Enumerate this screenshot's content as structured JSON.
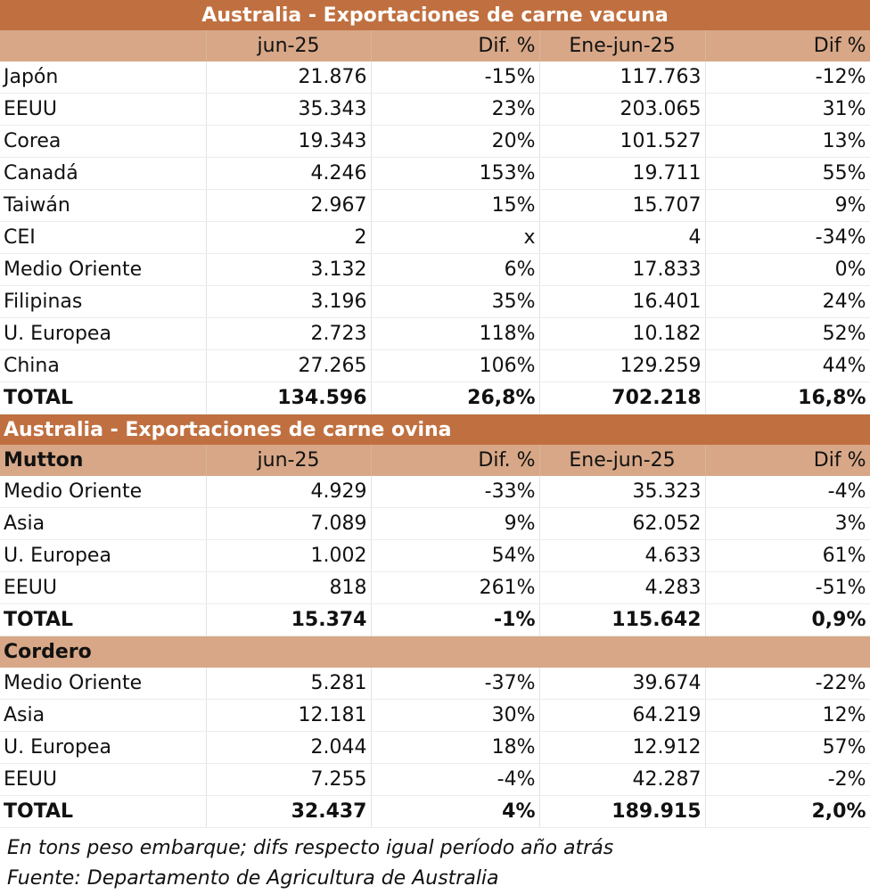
{
  "beef": {
    "title": "Australia - Exportaciones de carne vacuna",
    "headers": [
      "",
      "jun-25",
      "Dif. %",
      "Ene-jun-25",
      "Dif %"
    ],
    "rows": [
      [
        "Japón",
        "21.876",
        "-15%",
        "117.763",
        "-12%"
      ],
      [
        "EEUU",
        "35.343",
        "23%",
        "203.065",
        "31%"
      ],
      [
        "Corea",
        "19.343",
        "20%",
        "101.527",
        "13%"
      ],
      [
        "Canadá",
        "4.246",
        "153%",
        "19.711",
        "55%"
      ],
      [
        "Taiwán",
        "2.967",
        "15%",
        "15.707",
        "9%"
      ],
      [
        "CEI",
        "2",
        "x",
        "4",
        "-34%"
      ],
      [
        "Medio Oriente",
        "3.132",
        "6%",
        "17.833",
        "0%"
      ],
      [
        "Filipinas",
        "3.196",
        "35%",
        "16.401",
        "24%"
      ],
      [
        "U. Europea",
        "2.723",
        "118%",
        "10.182",
        "52%"
      ],
      [
        "China",
        "27.265",
        "106%",
        "129.259",
        "44%"
      ]
    ],
    "total": [
      "TOTAL",
      "134.596",
      "26,8%",
      "702.218",
      "16,8%"
    ]
  },
  "sheep": {
    "title": "Australia - Exportaciones de carne ovina",
    "mutton": {
      "headers": [
        "Mutton",
        "jun-25",
        "Dif. %",
        "Ene-jun-25",
        "Dif %"
      ],
      "rows": [
        [
          "Medio Oriente",
          "4.929",
          "-33%",
          "35.323",
          "-4%"
        ],
        [
          "Asia",
          "7.089",
          "9%",
          "62.052",
          "3%"
        ],
        [
          "U. Europea",
          "1.002",
          "54%",
          "4.633",
          "61%"
        ],
        [
          "EEUU",
          "818",
          "261%",
          "4.283",
          "-51%"
        ]
      ],
      "total": [
        "TOTAL",
        "15.374",
        "-1%",
        "115.642",
        "0,9%"
      ]
    },
    "lamb": {
      "label": "Cordero",
      "rows": [
        [
          "Medio Oriente",
          "5.281",
          "-37%",
          "39.674",
          "-22%"
        ],
        [
          "Asia",
          "12.181",
          "30%",
          "64.219",
          "12%"
        ],
        [
          "U. Europea",
          "2.044",
          "18%",
          "12.912",
          "57%"
        ],
        [
          "EEUU",
          "7.255",
          "-4%",
          "42.287",
          "-2%"
        ]
      ],
      "total": [
        "TOTAL",
        "32.437",
        "4%",
        "189.915",
        "2,0%"
      ]
    }
  },
  "notes": {
    "units": "En tons peso embarque; difs respecto igual período año atrás",
    "source": "Fuente: Departamento de Agricultura de Australia"
  },
  "colors": {
    "title_bg": "#c07040",
    "header_bg": "#d7a787"
  }
}
